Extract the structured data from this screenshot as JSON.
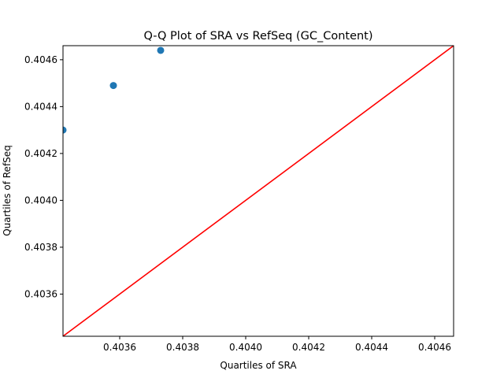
{
  "chart_data": {
    "type": "scatter",
    "title": "Q-Q Plot of SRA vs RefSeq (GC_Content)",
    "xlabel": "Quartiles of SRA",
    "ylabel": "Quartiles of RefSeq",
    "xlim": [
      0.40342,
      0.40466
    ],
    "ylim": [
      0.40342,
      0.40466
    ],
    "x_ticks": [
      "0.4036",
      "0.4038",
      "0.4040",
      "0.4042",
      "0.4044",
      "0.4046"
    ],
    "y_ticks": [
      "0.4036",
      "0.4038",
      "0.4040",
      "0.4042",
      "0.4044",
      "0.4046"
    ],
    "points": [
      {
        "x": 0.40342,
        "y": 0.4043
      },
      {
        "x": 0.40358,
        "y": 0.40449
      },
      {
        "x": 0.40373,
        "y": 0.40464
      }
    ],
    "reference_line": {
      "from": [
        0.40342,
        0.40342
      ],
      "to": [
        0.40466,
        0.40466
      ],
      "color": "#ff0000"
    },
    "marker_color": "#1f77b4",
    "grid": false,
    "legend": "none"
  }
}
